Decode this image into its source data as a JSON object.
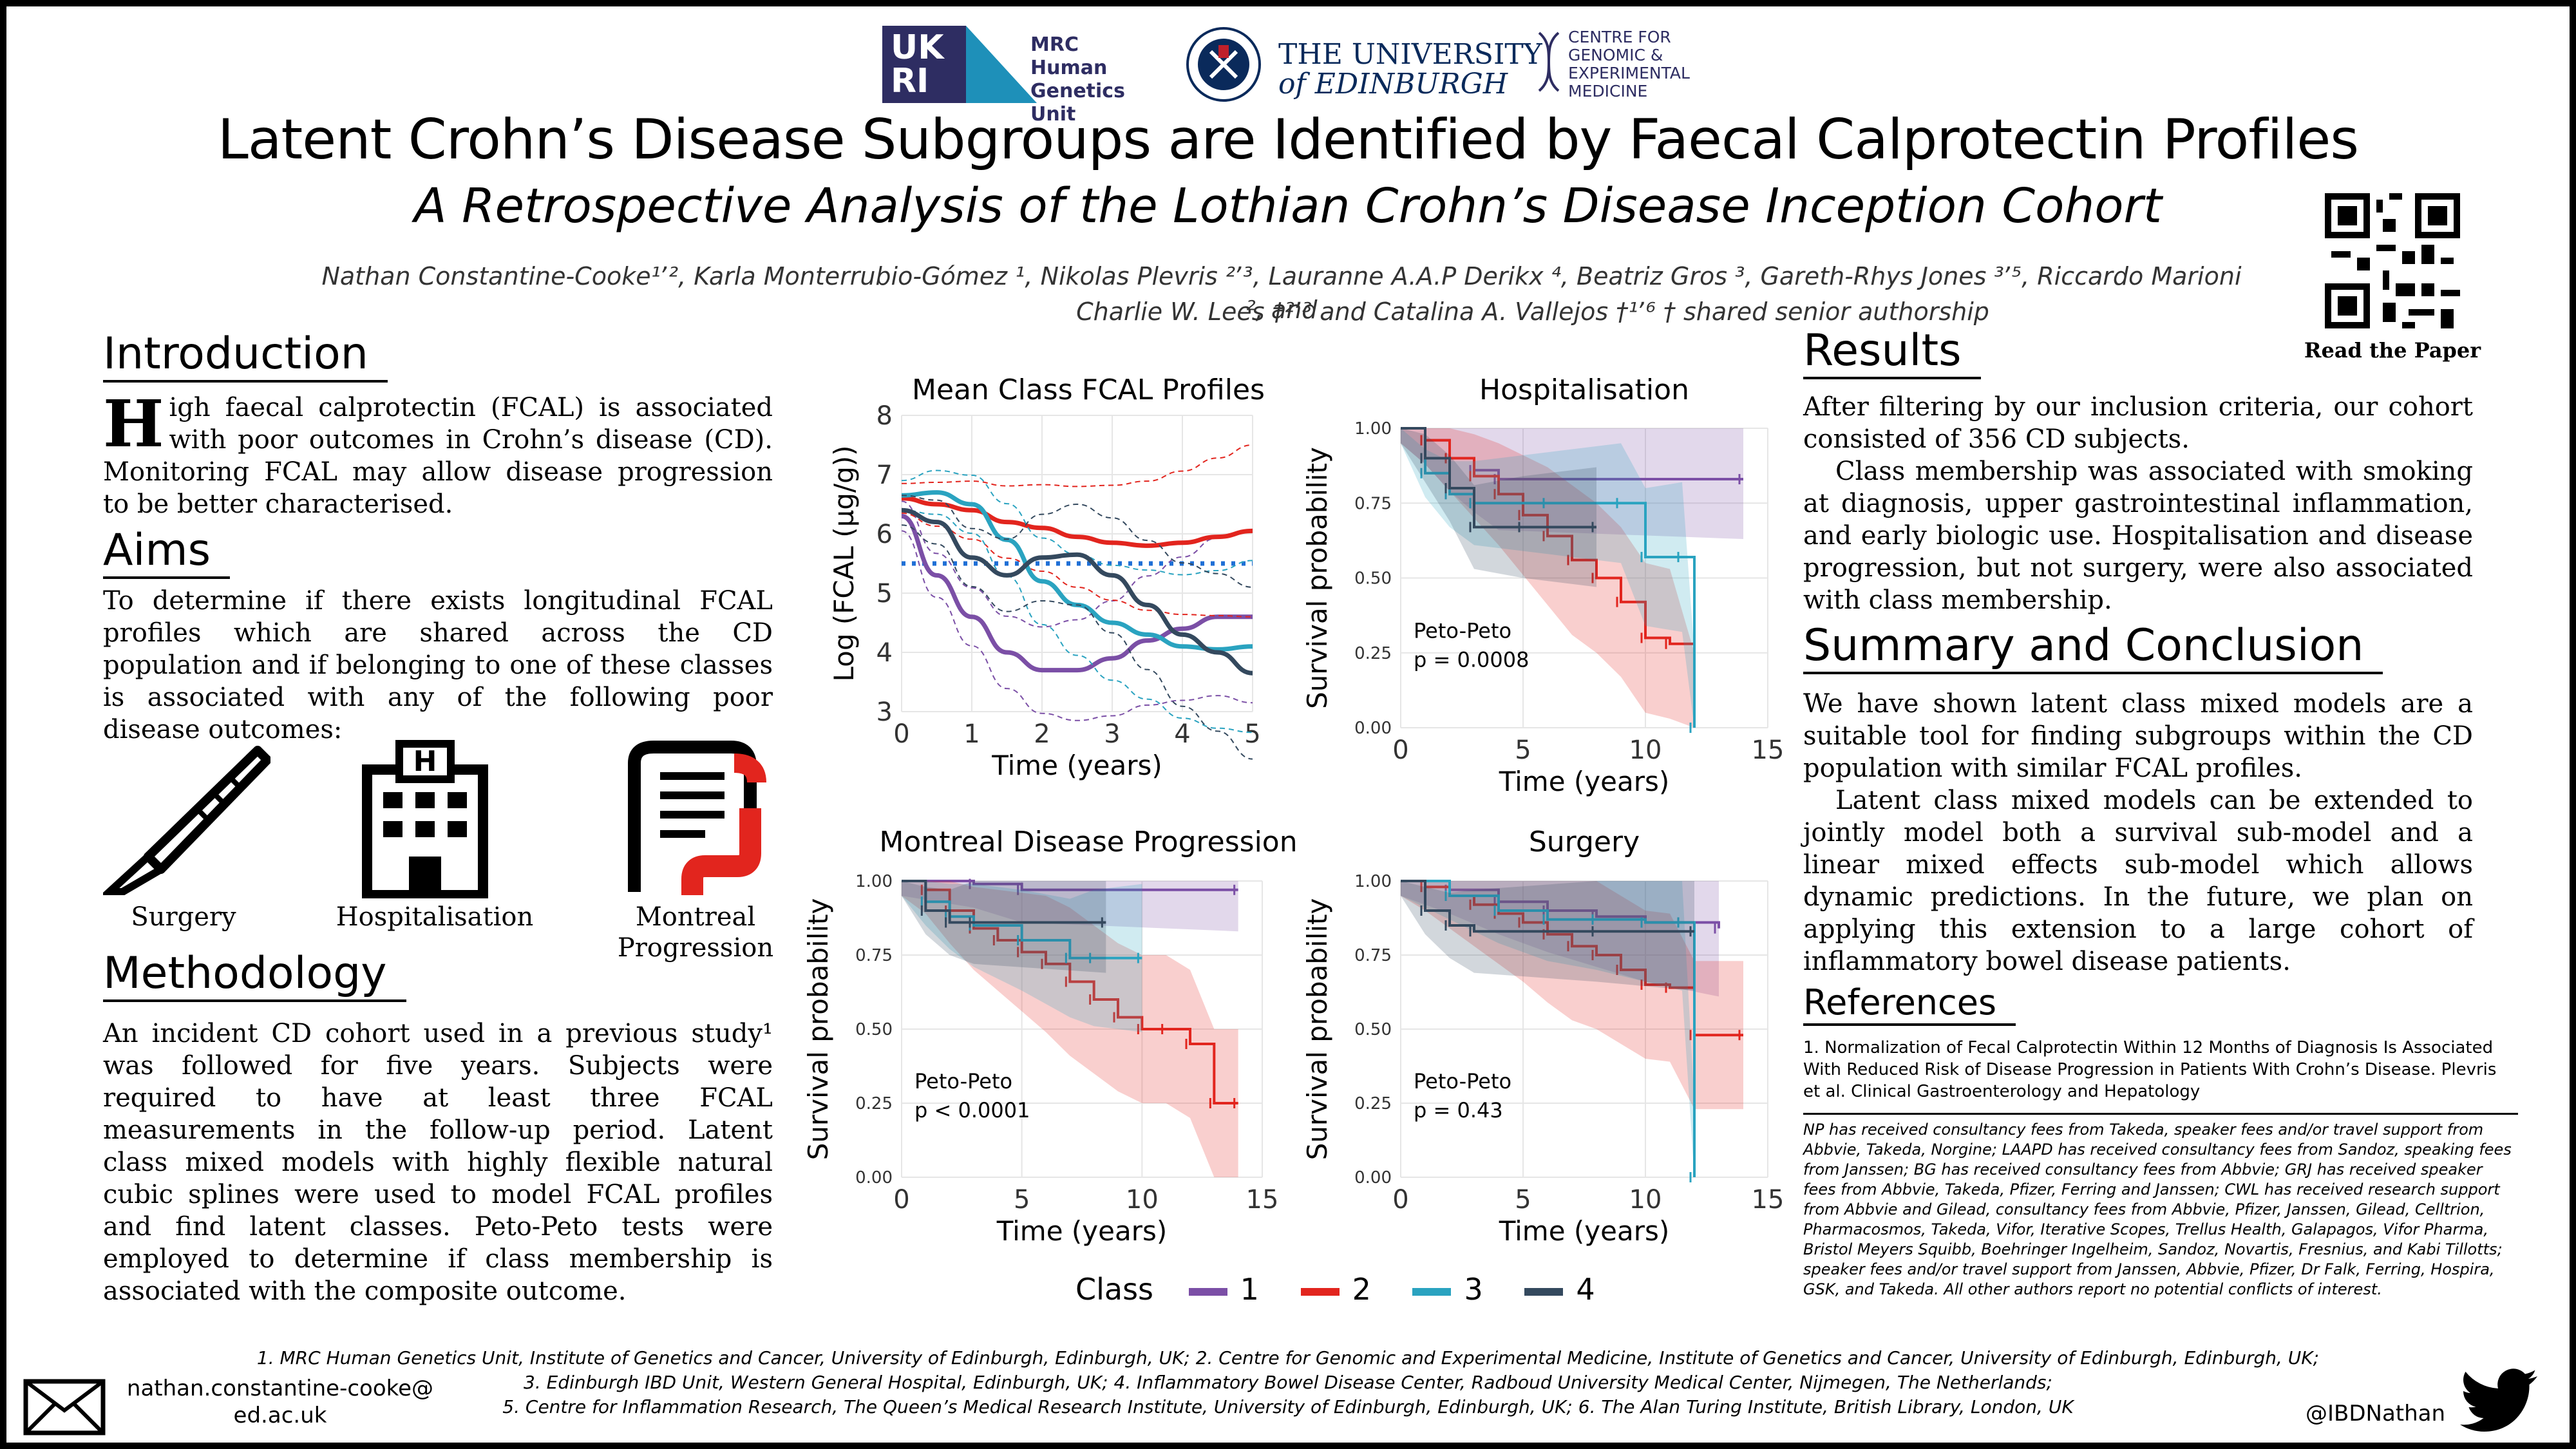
{
  "header": {
    "ukri_logo": "UK RI",
    "mrc_logo": [
      "MRC Human",
      "Genetics",
      "Unit"
    ],
    "uoe_logo": [
      "THE UNIVERSITY",
      "of EDINBURGH"
    ],
    "cgem_logo": [
      "CENTRE FOR",
      "GENOMIC &",
      "EXPERIMENTAL",
      "MEDICINE"
    ],
    "title": "Latent Crohn’s Disease Subgroups are Identified by Faecal Calprotectin Profiles",
    "subtitle": "A Retrospective Analysis of the Lothian Crohn’s Disease Inception Cohort",
    "authors_line1": "Nathan Constantine-Cooke¹ʼ², Karla Monterrubio-Gómez ¹,  Nikolas Plevris ²ʼ³,  Lauranne A.A.P Derikx ⁴,  Beatriz Gros ³,  Gareth-Rhys Jones ³ʼ⁵, Riccardo Marioni ², and",
    "authors_line2": "Charlie W. Lees †²ʼ³ and  Catalina A. Vallejos †¹ʼ⁶         † shared senior authorship",
    "qr_label": "Read the Paper"
  },
  "introduction": {
    "heading": "Introduction",
    "dropcap": "H",
    "text": "igh faecal calprotectin (FCAL) is associated with poor outcomes in Crohn’s disease (CD). Monitoring FCAL may allow disease progression to be better characterised."
  },
  "aims": {
    "heading": "Aims",
    "text": "To determine if there exists longitudinal FCAL profiles which are shared across the CD population and if belonging to one of these classes is associated with any of the following poor disease outcomes:",
    "outcomes": [
      "Surgery",
      "Hospitalisation",
      "Montreal Progression"
    ]
  },
  "methodology": {
    "heading": "Methodology",
    "text": "An incident CD cohort used in a previous study¹ was followed for five years. Subjects were required to have at least three FCAL measurements in the follow-up period.  Latent class mixed models with highly flexible natural cubic splines were used to model FCAL profiles and find latent classes. Peto-Peto tests were employed to determine if class membership is associated with the composite outcome."
  },
  "results": {
    "heading": "Results",
    "p1": "After filtering by our inclusion criteria, our cohort consisted of 356 CD subjects.",
    "p2": "Class membership was associated with smoking at diagnosis, upper gastrointestinal inflammation, and early biologic use. Hospitalisation and disease progression, but not surgery, were also associated with class membership."
  },
  "summary": {
    "heading": "Summary and Conclusion",
    "p1": "We have shown latent class mixed models are a suitable tool for finding subgroups within the CD population with similar FCAL profiles.",
    "p2": "Latent class mixed models can be extended to jointly model both a survival sub-model and a linear mixed effects sub-model which allows dynamic predictions. In the future, we plan on applying this extension to a large cohort of inflammatory bowel disease patients."
  },
  "references": {
    "heading": "References",
    "ref1": "1. Normalization of Fecal Calprotectin Within 12 Months of Diagnosis Is Associated With Reduced Risk of Disease Progression in Patients With Crohn’s Disease. Plevris et al. Clinical Gastroenterology and Hepatology",
    "coi": "NP has received consultancy fees from Takeda, speaker fees and/or travel support from Abbvie, Takeda, Norgine; LAAPD has received consultancy fees from Sandoz, speaking fees from Janssen; BG has received consultancy fees from Abbvie; GRJ has received speaker fees from Abbvie, Takeda, Pfizer, Ferring and Janssen; CWL has received research support from Abbvie and Gilead, consultancy fees from Abbvie, Pfizer, Janssen, Gilead, Celltrion, Pharmacosmos, Takeda, Vifor, Iterative Scopes, Trellus Health, Galapagos, Vifor Pharma,  Bristol Meyers Squibb, Boehringer Ingelheim, Sandoz, Novartis, Fresnius, and Kabi Tillotts; speaker fees and/or travel support from Janssen, Abbvie, Pfizer, Dr Falk, Ferring, Hospira, GSK, and Takeda. All other authors report no potential conflicts of interest."
  },
  "footer": {
    "affiliations": [
      "1. MRC Human Genetics Unit, Institute of Genetics and Cancer, University of Edinburgh, Edinburgh, UK; 2. Centre for Genomic and Experimental Medicine, Institute of Genetics and Cancer, University of Edinburgh, Edinburgh, UK;",
      "3. Edinburgh IBD Unit, Western General Hospital, Edinburgh, UK; 4. Inflammatory Bowel Disease Center, Radboud University Medical Center, Nijmegen, The Netherlands;",
      "5. Centre for Inflammation Research, The Queen’s Medical Research Institute, University of Edinburgh, Edinburgh, UK; 6. The Alan Turing Institute, British Library, London, UK"
    ],
    "email": [
      "nathan.constantine-cooke@",
      "ed.ac.uk"
    ],
    "twitter": "@IBDNathan"
  },
  "colors": {
    "class1": "#7b4fa6",
    "class2": "#e2251e",
    "class3": "#2aa3c0",
    "class4": "#34495e"
  },
  "legend": {
    "title": "Class",
    "items": [
      "1",
      "2",
      "3",
      "4"
    ]
  },
  "chart_data": [
    {
      "type": "line",
      "title": "Mean Class FCAL Profiles",
      "xlabel": "Time  (years)",
      "ylabel": "Log (FCAL (µg/g))",
      "xlim": [
        0,
        5
      ],
      "ylim": [
        3,
        8
      ],
      "xticks": [
        "0",
        "1",
        "2",
        "3",
        "4",
        "5"
      ],
      "yticks": [
        "3",
        "4",
        "5",
        "6",
        "7",
        "8"
      ],
      "reference_line": 5.5,
      "x": [
        0,
        0.5,
        1,
        1.5,
        2,
        2.5,
        3,
        3.5,
        4,
        4.5,
        5
      ],
      "series": [
        {
          "name": "1",
          "values": [
            6.3,
            5.3,
            4.6,
            4.0,
            3.7,
            3.7,
            3.9,
            4.2,
            4.4,
            4.6,
            4.6
          ]
        },
        {
          "name": "2",
          "values": [
            6.6,
            6.5,
            6.4,
            6.2,
            6.1,
            5.95,
            5.85,
            5.8,
            5.85,
            5.95,
            6.05
          ]
        },
        {
          "name": "3",
          "values": [
            6.65,
            6.7,
            6.5,
            5.9,
            5.2,
            4.8,
            4.5,
            4.3,
            4.1,
            4.05,
            4.1
          ]
        },
        {
          "name": "4",
          "values": [
            6.4,
            6.2,
            5.6,
            5.3,
            5.6,
            5.65,
            5.3,
            4.8,
            4.3,
            4.0,
            3.65
          ]
        }
      ]
    },
    {
      "type": "line",
      "title": "Hospitalisation",
      "xlabel": "Time  (years)",
      "ylabel": "Survival probability",
      "xlim": [
        0,
        15
      ],
      "ylim": [
        0,
        1
      ],
      "xticks": [
        "0",
        "5",
        "10",
        "15"
      ],
      "yticks": [
        "0.00",
        "0.25",
        "0.50",
        "0.75",
        "1.00"
      ],
      "annotation": [
        "Peto-Peto",
        "p = 0.0008"
      ],
      "series": [
        {
          "name": "1",
          "x": [
            0,
            1,
            2,
            3,
            4,
            14
          ],
          "y": [
            1,
            0.96,
            0.9,
            0.86,
            0.83,
            0.83
          ]
        },
        {
          "name": "2",
          "x": [
            0,
            1,
            2,
            3,
            4,
            5,
            6,
            7,
            8,
            9,
            10,
            11,
            12
          ],
          "y": [
            1,
            0.96,
            0.9,
            0.84,
            0.78,
            0.71,
            0.64,
            0.56,
            0.5,
            0.42,
            0.3,
            0.28,
            0.0
          ]
        },
        {
          "name": "3",
          "x": [
            0,
            1,
            2,
            3,
            6,
            9,
            10,
            11.5,
            12
          ],
          "y": [
            1,
            0.85,
            0.78,
            0.75,
            0.75,
            0.75,
            0.57,
            0.57,
            0.0
          ]
        },
        {
          "name": "4",
          "x": [
            0,
            1,
            2,
            3,
            5,
            8
          ],
          "y": [
            1,
            0.9,
            0.8,
            0.67,
            0.67,
            0.67
          ]
        }
      ]
    },
    {
      "type": "line",
      "title": "Montreal Disease Progression",
      "xlabel": "Time  (years)",
      "ylabel": "Survival probability",
      "xlim": [
        0,
        15
      ],
      "ylim": [
        0,
        1
      ],
      "xticks": [
        "0",
        "5",
        "10",
        "15"
      ],
      "yticks": [
        "0.00",
        "0.25",
        "0.50",
        "0.75",
        "1.00"
      ],
      "annotation": [
        "Peto-Peto",
        "p < 0.0001"
      ],
      "series": [
        {
          "name": "1",
          "x": [
            0,
            3,
            5,
            14
          ],
          "y": [
            1,
            0.99,
            0.97,
            0.97
          ]
        },
        {
          "name": "2",
          "x": [
            0,
            1,
            2,
            3,
            4,
            5,
            6,
            7,
            8,
            9,
            10,
            11,
            12,
            13,
            14
          ],
          "y": [
            1,
            0.97,
            0.9,
            0.84,
            0.8,
            0.76,
            0.72,
            0.66,
            0.6,
            0.54,
            0.5,
            0.5,
            0.45,
            0.25,
            0.25
          ]
        },
        {
          "name": "3",
          "x": [
            0,
            1,
            2,
            3,
            5,
            7,
            8,
            10
          ],
          "y": [
            1,
            0.93,
            0.88,
            0.85,
            0.8,
            0.74,
            0.74,
            0.74
          ]
        },
        {
          "name": "4",
          "x": [
            0,
            1,
            2,
            3,
            8.5
          ],
          "y": [
            1,
            0.9,
            0.86,
            0.86,
            0.86
          ]
        }
      ]
    },
    {
      "type": "line",
      "title": "Surgery",
      "xlabel": "Time  (years)",
      "ylabel": "Survival probability",
      "xlim": [
        0,
        15
      ],
      "ylim": [
        0,
        1
      ],
      "xticks": [
        "0",
        "5",
        "10",
        "15"
      ],
      "yticks": [
        "0.00",
        "0.25",
        "0.50",
        "0.75",
        "1.00"
      ],
      "annotation": [
        "Peto-Peto",
        "p = 0.43"
      ],
      "series": [
        {
          "name": "1",
          "x": [
            0,
            2,
            4,
            6,
            8,
            10,
            13
          ],
          "y": [
            1,
            0.97,
            0.93,
            0.9,
            0.88,
            0.86,
            0.84
          ]
        },
        {
          "name": "2",
          "x": [
            0,
            1,
            2,
            3,
            4,
            5,
            6,
            7,
            8,
            9,
            10,
            11,
            12,
            14
          ],
          "y": [
            1,
            0.98,
            0.95,
            0.92,
            0.89,
            0.86,
            0.82,
            0.78,
            0.75,
            0.7,
            0.65,
            0.64,
            0.48,
            0.48
          ]
        },
        {
          "name": "3",
          "x": [
            0,
            2,
            4,
            6,
            8,
            10,
            11.5,
            12
          ],
          "y": [
            1,
            0.95,
            0.9,
            0.87,
            0.87,
            0.86,
            0.86,
            0.0
          ]
        },
        {
          "name": "4",
          "x": [
            0,
            1,
            2,
            3,
            8,
            12
          ],
          "y": [
            1,
            0.9,
            0.85,
            0.83,
            0.83,
            0.83
          ]
        }
      ]
    }
  ]
}
